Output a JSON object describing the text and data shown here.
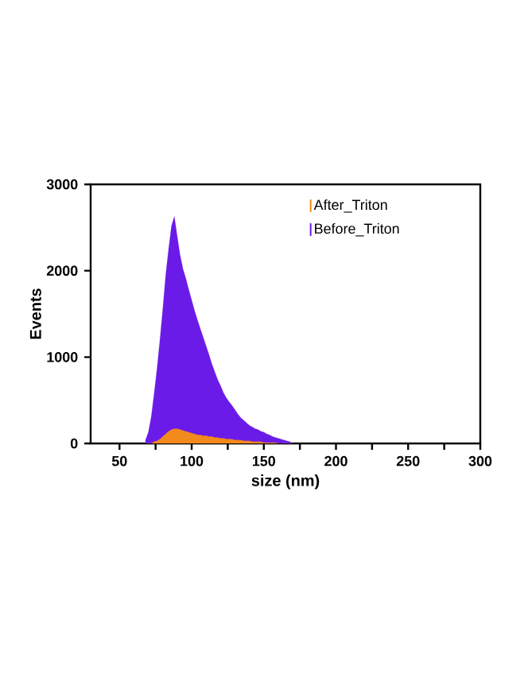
{
  "chart_data": {
    "type": "area",
    "xlabel": "size (nm)",
    "ylabel": "Events",
    "legend": "top right",
    "x": [
      68,
      70,
      72,
      74,
      76,
      78,
      80,
      82,
      84,
      86,
      88,
      90,
      92,
      94,
      96,
      98,
      100,
      102,
      104,
      106,
      108,
      110,
      112,
      114,
      116,
      118,
      120,
      122,
      124,
      126,
      128,
      130,
      132,
      134,
      136,
      138,
      140,
      142,
      144,
      146,
      148,
      150,
      152,
      154,
      156,
      158,
      160,
      162,
      164,
      166,
      168,
      170
    ],
    "series": [
      {
        "name": "After_Triton",
        "color": "#f28a1c",
        "values": [
          0,
          0,
          0,
          20,
          30,
          50,
          80,
          110,
          140,
          160,
          170,
          170,
          160,
          150,
          140,
          130,
          120,
          110,
          100,
          100,
          90,
          90,
          80,
          80,
          70,
          70,
          60,
          60,
          50,
          50,
          50,
          40,
          40,
          40,
          30,
          30,
          30,
          20,
          20,
          20,
          20,
          10,
          10,
          10,
          10,
          10,
          0,
          0,
          0,
          0,
          0,
          0
        ]
      },
      {
        "name": "Before_Triton",
        "color": "#6a1be8",
        "values": [
          40,
          130,
          310,
          580,
          870,
          1200,
          1560,
          1950,
          2250,
          2520,
          2630,
          2400,
          2180,
          2020,
          1910,
          1780,
          1660,
          1540,
          1430,
          1330,
          1230,
          1130,
          1030,
          920,
          830,
          740,
          670,
          590,
          530,
          480,
          440,
          390,
          340,
          300,
          270,
          240,
          210,
          190,
          170,
          160,
          140,
          130,
          110,
          100,
          80,
          70,
          60,
          50,
          40,
          30,
          20,
          0
        ]
      }
    ],
    "xlim": [
      30,
      300
    ],
    "ylim": [
      0,
      3000
    ],
    "xticks": [
      50,
      {
        "value": 75,
        "label": null
      },
      100,
      {
        "value": 125,
        "label": null
      },
      150,
      {
        "value": 175,
        "label": null
      },
      200,
      {
        "value": 225,
        "label": null
      },
      250,
      {
        "value": 275,
        "label": null
      },
      300
    ],
    "yticks": [
      0,
      1000,
      2000,
      3000
    ]
  }
}
